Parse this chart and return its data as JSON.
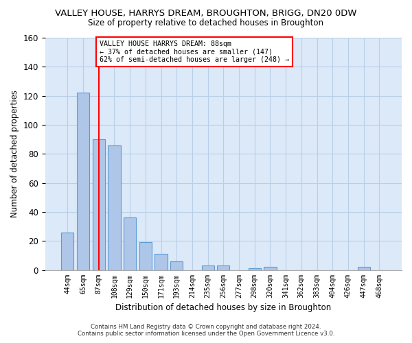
{
  "title": "VALLEY HOUSE, HARRYS DREAM, BROUGHTON, BRIGG, DN20 0DW",
  "subtitle": "Size of property relative to detached houses in Broughton",
  "xlabel": "Distribution of detached houses by size in Broughton",
  "ylabel": "Number of detached properties",
  "categories": [
    "44sqm",
    "65sqm",
    "87sqm",
    "108sqm",
    "129sqm",
    "150sqm",
    "171sqm",
    "193sqm",
    "214sqm",
    "235sqm",
    "256sqm",
    "277sqm",
    "298sqm",
    "320sqm",
    "341sqm",
    "362sqm",
    "383sqm",
    "404sqm",
    "426sqm",
    "447sqm",
    "468sqm"
  ],
  "values": [
    26,
    122,
    90,
    86,
    36,
    19,
    11,
    6,
    0,
    3,
    3,
    0,
    1,
    2,
    0,
    0,
    0,
    0,
    0,
    2,
    0
  ],
  "bar_color": "#aec6e8",
  "bar_edge_color": "#5b9bd5",
  "vline_x": 2.0,
  "vline_color": "red",
  "ylim": [
    0,
    160
  ],
  "yticks": [
    0,
    20,
    40,
    60,
    80,
    100,
    120,
    140,
    160
  ],
  "annotation_title": "VALLEY HOUSE HARRYS DREAM: 88sqm",
  "annotation_line1": "← 37% of detached houses are smaller (147)",
  "annotation_line2": "62% of semi-detached houses are larger (248) →",
  "footnote1": "Contains HM Land Registry data © Crown copyright and database right 2024.",
  "footnote2": "Contains public sector information licensed under the Open Government Licence v3.0.",
  "bg_color": "#dce9f8",
  "grid_color": "#b8cfe8"
}
